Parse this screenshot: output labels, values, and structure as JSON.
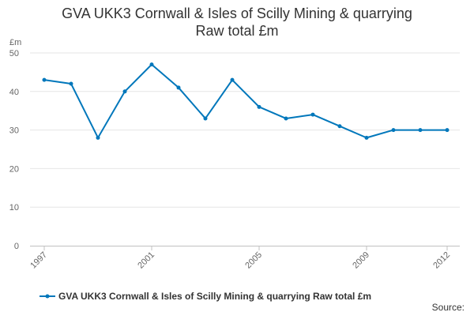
{
  "chart_data": {
    "type": "line",
    "title_lines": [
      "GVA UKK3 Cornwall & Isles of Scilly Mining & quarrying",
      "Raw total £m"
    ],
    "ylabel": "£m",
    "xlabel": "",
    "x": [
      1997,
      1998,
      1999,
      2000,
      2001,
      2002,
      2003,
      2004,
      2005,
      2006,
      2007,
      2008,
      2009,
      2010,
      2011,
      2012
    ],
    "x_tick_labels": [
      "1997",
      "2001",
      "2005",
      "2009",
      "2012"
    ],
    "ylim": [
      0,
      50
    ],
    "y_ticks": [
      0,
      10,
      20,
      30,
      40,
      50
    ],
    "grid": true,
    "legend_position": "bottom",
    "series": [
      {
        "name": "GVA UKK3 Cornwall & Isles of Scilly Mining & quarrying Raw total £m",
        "color": "#0077bb",
        "values": [
          43,
          42,
          28,
          40,
          47,
          41,
          33,
          43,
          36,
          33,
          34,
          31,
          28,
          30,
          30,
          30
        ]
      }
    ]
  },
  "source_label": "Source:"
}
